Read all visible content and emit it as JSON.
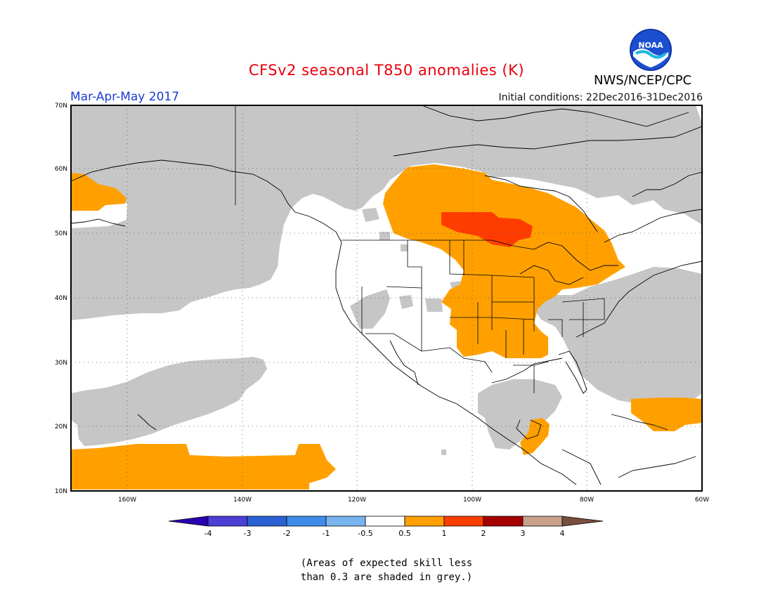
{
  "title": "CFSv2 seasonal T850 anomalies (K)",
  "season": "Mar-Apr-May 2017",
  "initial_conditions": "Initial conditions: 22Dec2016-31Dec2016",
  "agency": "NWS/NCEP/CPC",
  "logo": {
    "text": "NOAA",
    "icon": "noaa-logo-icon"
  },
  "colors": {
    "title": "#e8000b",
    "season": "#1a3cd6",
    "grey_low_skill": "#c6c6c6",
    "anom_0_5_1": "#ffa000",
    "anom_1_2": "#ff3c00",
    "coast": "#000000"
  },
  "map": {
    "lon_range": [
      -172,
      -60
    ],
    "lat_range": [
      10,
      70
    ],
    "lat_ticks": [
      "10N",
      "20N",
      "30N",
      "40N",
      "50N",
      "60N",
      "70N"
    ],
    "lon_ticks": [
      "160W",
      "140W",
      "120W",
      "100W",
      "80W",
      "60W"
    ],
    "grid": "dotted"
  },
  "colorbar": {
    "labels": [
      "-4",
      "-3",
      "-2",
      "-1",
      "-0.5",
      "0.5",
      "1",
      "2",
      "3",
      "4"
    ],
    "colors": [
      "#2a00b0",
      "#4b3fd6",
      "#2a62d4",
      "#3f8ce8",
      "#78b4f0",
      "#ffffff",
      "#ffa000",
      "#ff3c00",
      "#a50000",
      "#c8a08c",
      "#7a4e3c"
    ]
  },
  "note": {
    "line1": "(Areas of expected skill less",
    "line2": "than 0.3 are shaded in grey.)"
  }
}
